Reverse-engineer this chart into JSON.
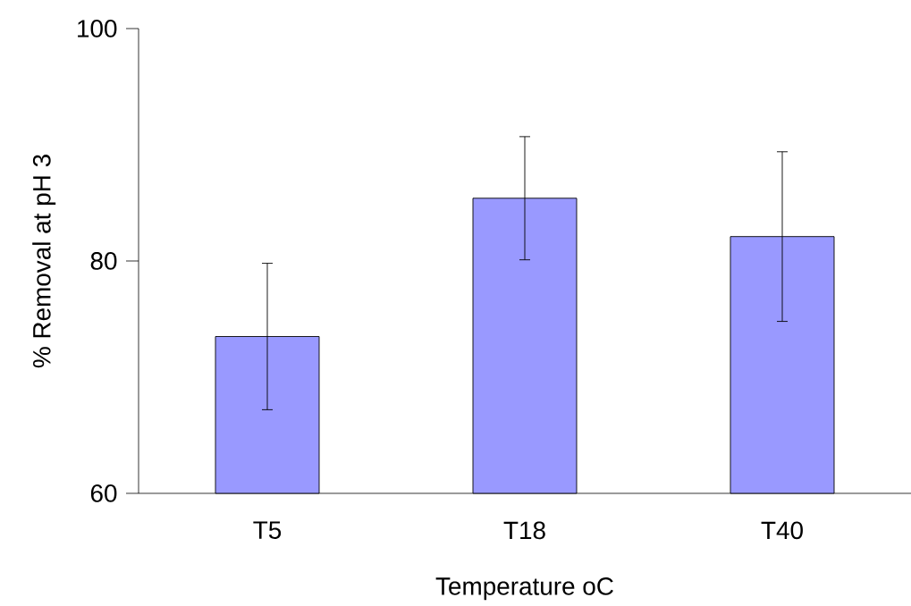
{
  "chart_data": {
    "type": "bar",
    "xlabel": "Temperature oC",
    "ylabel": "% Removal at pH 3",
    "categories": [
      "T5",
      "T18",
      "T40"
    ],
    "values": [
      73.5,
      85.4,
      82.1
    ],
    "errors": [
      6.3,
      5.3,
      7.3
    ],
    "color": "#9999ff",
    "ylim": [
      60,
      100
    ],
    "yticks": [
      60,
      80,
      100
    ]
  }
}
